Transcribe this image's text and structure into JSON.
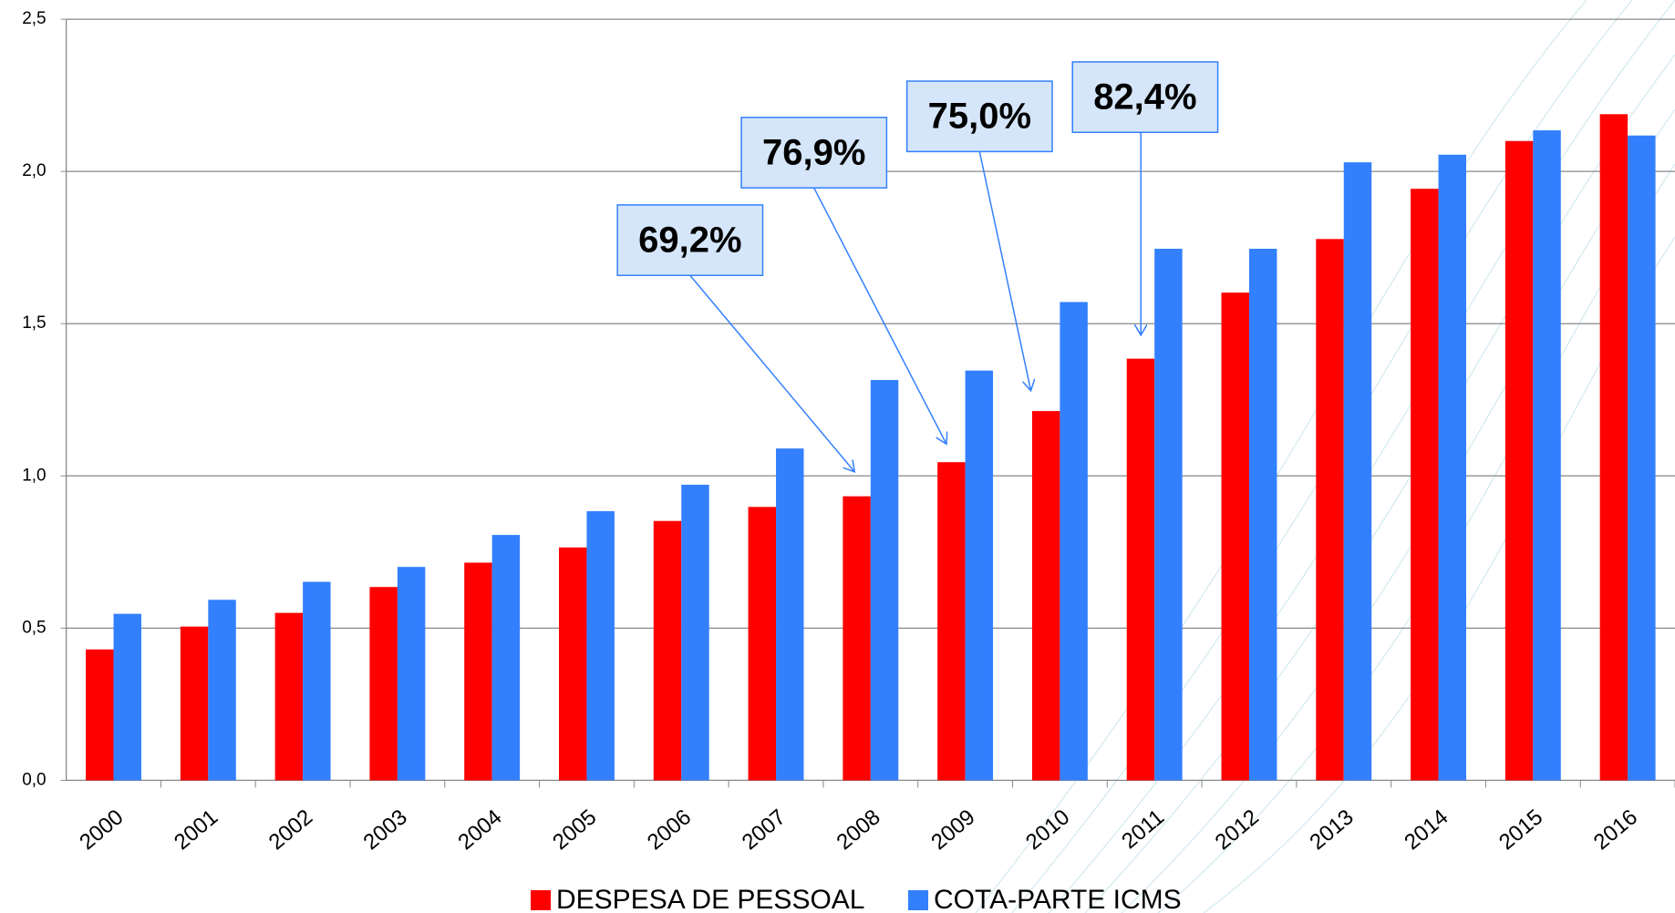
{
  "chart_data": {
    "type": "bar",
    "categories": [
      "2000",
      "2001",
      "2002",
      "2003",
      "2004",
      "2005",
      "2006",
      "2007",
      "2008",
      "2009",
      "2010",
      "2011",
      "2012",
      "2013",
      "2014",
      "2015",
      "2016"
    ],
    "series": [
      {
        "name": "DESPESA DE PESSOAL",
        "color": "#ff0000",
        "values": [
          0.43,
          0.505,
          0.55,
          0.635,
          0.715,
          0.765,
          0.852,
          0.898,
          0.933,
          1.045,
          1.213,
          1.385,
          1.602,
          1.778,
          1.943,
          2.1,
          2.188
        ]
      },
      {
        "name": "COTA-PARTE ICMS",
        "color": "#3380ff",
        "values": [
          0.547,
          0.593,
          0.652,
          0.701,
          0.806,
          0.884,
          0.971,
          1.09,
          1.315,
          1.346,
          1.571,
          1.746,
          1.746,
          2.03,
          2.055,
          2.135,
          2.118
        ]
      }
    ],
    "ylim": [
      0,
      2.5
    ],
    "yticks": [
      {
        "value": 0,
        "label": "0,0"
      },
      {
        "value": 0.5,
        "label": "0,5"
      },
      {
        "value": 1,
        "label": "1,0"
      },
      {
        "value": 1.5,
        "label": "1,5"
      },
      {
        "value": 2,
        "label": "2,0"
      },
      {
        "value": 2.5,
        "label": "2,5"
      }
    ],
    "grid": true,
    "annotations": [
      "69,2%",
      "76,9%",
      "75,0%",
      "82,4%"
    ],
    "legend": "bottom"
  }
}
